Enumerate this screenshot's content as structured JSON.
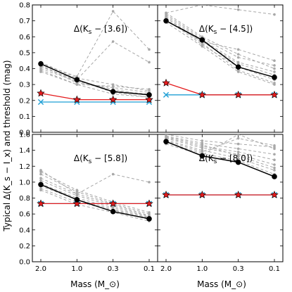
{
  "figure": {
    "ylabel": "Typical Δ(K_s − I_x) and threshold (mag)",
    "xlabel": "Mass (M_⊙)"
  },
  "chart_data": [
    {
      "type": "line",
      "annotation": "Δ(K_s − [3.6])",
      "x": [
        2.0,
        1.0,
        0.3,
        0.1
      ],
      "xtick_labels": [
        "2.0",
        "1.0",
        "0.3",
        "0.1"
      ],
      "ylim": [
        0.0,
        0.8
      ],
      "yticks": [
        0.0,
        0.1,
        0.2,
        0.3,
        0.4,
        0.5,
        0.6,
        0.7,
        0.8
      ],
      "ytick_labels": [
        "0.0",
        "0.1",
        "0.2",
        "0.3",
        "0.4",
        "0.5",
        "0.6",
        "0.7",
        "0.8"
      ],
      "series": [
        {
          "role": "typical",
          "color": "#000000",
          "marker": "circle",
          "values": [
            0.43,
            0.33,
            0.255,
            0.235
          ]
        },
        {
          "role": "threshold-red",
          "color": "#e41a1c",
          "marker": "star",
          "values": [
            0.245,
            0.205,
            0.205,
            0.205
          ]
        },
        {
          "role": "threshold-blue",
          "color": "#1f9fd5",
          "marker": "x",
          "values": [
            0.19,
            0.19,
            0.19,
            0.19
          ]
        }
      ],
      "grey_series": [
        [
          0.43,
          0.33,
          0.25,
          0.22
        ],
        [
          0.42,
          0.32,
          0.26,
          0.24
        ],
        [
          0.44,
          0.34,
          0.3,
          0.26
        ],
        [
          0.42,
          0.31,
          0.28,
          0.25
        ],
        [
          0.38,
          0.3,
          0.24,
          0.22
        ],
        [
          0.4,
          0.32,
          0.27,
          0.23
        ],
        [
          0.41,
          0.33,
          0.57,
          0.44
        ],
        [
          0.43,
          0.35,
          0.76,
          0.52
        ],
        [
          0.39,
          0.3,
          0.29,
          0.27
        ]
      ]
    },
    {
      "type": "line",
      "annotation": "Δ(K_s − [4.5])",
      "x": [
        2.0,
        1.0,
        0.3,
        0.1
      ],
      "xtick_labels": [
        "2.0",
        "1.0",
        "0.3",
        "0.1"
      ],
      "ylim": [
        0.0,
        0.8
      ],
      "yticks": [
        0.0,
        0.1,
        0.2,
        0.3,
        0.4,
        0.5,
        0.6,
        0.7,
        0.8
      ],
      "ytick_labels": [],
      "series": [
        {
          "role": "typical",
          "color": "#000000",
          "marker": "circle",
          "values": [
            0.7,
            0.58,
            0.41,
            0.345
          ]
        },
        {
          "role": "threshold-red",
          "color": "#e41a1c",
          "marker": "star",
          "values": [
            0.31,
            0.235,
            0.235,
            0.235
          ]
        },
        {
          "role": "threshold-blue",
          "color": "#1f9fd5",
          "marker": "x",
          "values": [
            0.235,
            0.235,
            0.235,
            0.235
          ]
        }
      ],
      "grey_series": [
        [
          0.75,
          0.6,
          0.49,
          0.4
        ],
        [
          0.74,
          0.59,
          0.47,
          0.42
        ],
        [
          0.73,
          0.58,
          0.44,
          0.38
        ],
        [
          0.72,
          0.57,
          0.43,
          0.36
        ],
        [
          0.71,
          0.55,
          0.41,
          0.33
        ],
        [
          0.7,
          0.57,
          0.52,
          0.45
        ],
        [
          0.72,
          0.56,
          0.39,
          0.31
        ],
        [
          0.69,
          0.54,
          0.38,
          0.3
        ],
        [
          0.75,
          0.8,
          0.77,
          0.74
        ]
      ]
    },
    {
      "type": "line",
      "annotation": "Δ(K_s − [5.8])",
      "x": [
        2.0,
        1.0,
        0.3,
        0.1
      ],
      "xtick_labels": [
        "2.0",
        "1.0",
        "0.3",
        "0.1"
      ],
      "ylim": [
        0.0,
        1.6
      ],
      "yticks": [
        0.0,
        0.2,
        0.4,
        0.6,
        0.8,
        1.0,
        1.2,
        1.4,
        1.6
      ],
      "ytick_labels": [
        "0.0",
        "0.2",
        "0.4",
        "0.6",
        "0.8",
        "1.0",
        "1.2",
        "1.4",
        "1.6"
      ],
      "series": [
        {
          "role": "typical",
          "color": "#000000",
          "marker": "circle",
          "values": [
            0.97,
            0.78,
            0.63,
            0.54
          ]
        },
        {
          "role": "threshold-red",
          "color": "#e41a1c",
          "marker": "star",
          "values": [
            0.73,
            0.73,
            0.73,
            0.73
          ]
        },
        {
          "role": "threshold-blue",
          "color": "#1f9fd5",
          "marker": "x",
          "values": [
            0.73,
            0.73,
            0.73,
            0.73
          ]
        }
      ],
      "grey_series": [
        [
          1.13,
          0.9,
          0.75,
          0.62
        ],
        [
          1.1,
          0.88,
          0.73,
          0.6
        ],
        [
          1.05,
          0.85,
          0.72,
          0.58
        ],
        [
          1.02,
          0.83,
          0.7,
          0.57
        ],
        [
          0.98,
          0.8,
          0.68,
          0.56
        ],
        [
          0.95,
          0.78,
          0.66,
          0.55
        ],
        [
          0.92,
          0.75,
          0.65,
          0.53
        ],
        [
          0.9,
          0.72,
          0.62,
          0.51
        ],
        [
          1.15,
          0.85,
          1.1,
          1.0
        ]
      ]
    },
    {
      "type": "line",
      "annotation": "Δ(K_s − [8.0])",
      "x": [
        2.0,
        1.0,
        0.3,
        0.1
      ],
      "xtick_labels": [
        "2.0",
        "1.0",
        "0.3",
        "0.1"
      ],
      "ylim": [
        0.0,
        1.6
      ],
      "yticks": [
        0.0,
        0.2,
        0.4,
        0.6,
        0.8,
        1.0,
        1.2,
        1.4,
        1.6
      ],
      "ytick_labels": [],
      "series": [
        {
          "role": "typical",
          "color": "#000000",
          "marker": "circle",
          "values": [
            1.51,
            1.33,
            1.25,
            1.07
          ]
        },
        {
          "role": "threshold-red",
          "color": "#e41a1c",
          "marker": "star",
          "values": [
            0.84,
            0.84,
            0.84,
            0.84
          ]
        },
        {
          "role": "threshold-blue",
          "color": "#1f9fd5",
          "marker": "x",
          "values": [
            0.84,
            0.84,
            0.84,
            0.84
          ]
        }
      ],
      "grey_series": [
        [
          1.6,
          1.52,
          1.48,
          1.44
        ],
        [
          1.58,
          1.49,
          1.42,
          1.35
        ],
        [
          1.56,
          1.45,
          1.38,
          1.28
        ],
        [
          1.55,
          1.43,
          1.35,
          1.22
        ],
        [
          1.53,
          1.4,
          1.3,
          1.15
        ],
        [
          1.52,
          1.38,
          1.55,
          1.46
        ],
        [
          1.5,
          1.36,
          1.27,
          1.1
        ],
        [
          1.48,
          1.34,
          1.6,
          1.42
        ],
        [
          1.57,
          1.47,
          1.33,
          1.18
        ]
      ]
    }
  ]
}
